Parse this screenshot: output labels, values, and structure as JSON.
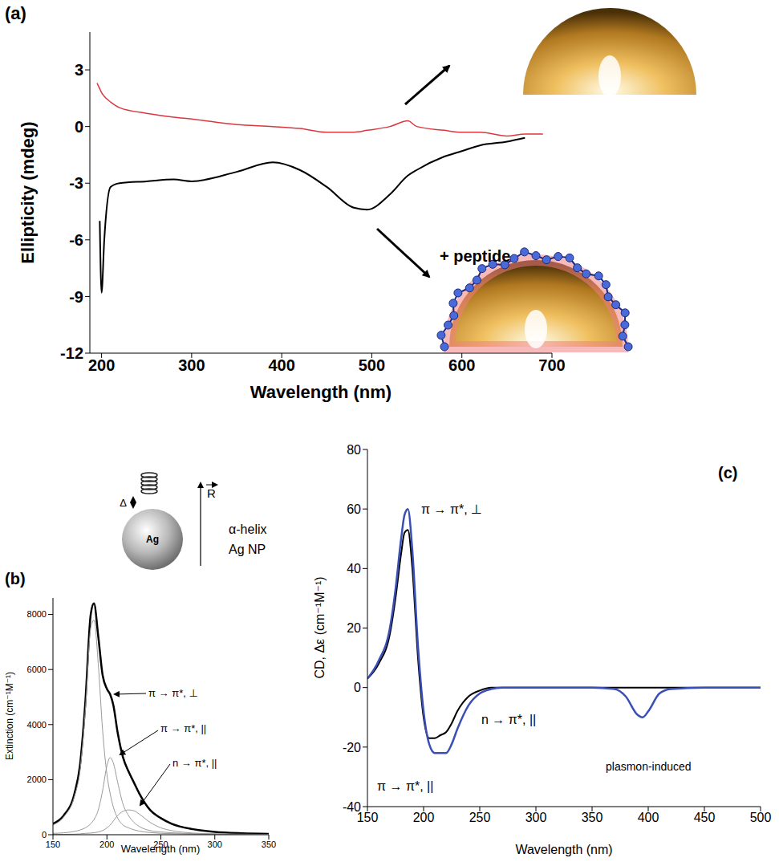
{
  "chart_data": [
    {
      "type": "line",
      "title": "(a)",
      "x_label": "Wavelength (nm)",
      "y_label": "Ellipticity (mdeg)",
      "x": [
        195,
        198,
        200,
        203,
        210,
        220,
        250,
        280,
        300,
        350,
        390,
        420,
        450,
        480,
        495,
        520,
        540,
        550,
        580,
        600,
        620,
        650,
        670,
        690
      ],
      "series": [
        {
          "color": "#d9383f",
          "values": [
            2.3,
            2.0,
            1.8,
            1.6,
            1.3,
            1.0,
            0.7,
            0.5,
            0.4,
            0.1,
            0.0,
            -0.1,
            -0.3,
            -0.3,
            -0.2,
            0.0,
            0.3,
            0.0,
            -0.2,
            -0.3,
            -0.3,
            -0.5,
            -0.4,
            -0.4
          ]
        },
        {
          "color": "#000000",
          "values": [
            null,
            -5.0,
            -8.8,
            -6.0,
            -3.2,
            -3.0,
            -2.9,
            -2.8,
            -2.9,
            -2.4,
            -1.9,
            -2.3,
            -3.2,
            -4.3,
            -4.4,
            -3.6,
            -2.6,
            -2.3,
            -1.6,
            -1.3,
            -1.0,
            -0.8,
            -0.6,
            null
          ]
        }
      ],
      "xlim": [
        187,
        700
      ],
      "ylim": [
        -12,
        5
      ],
      "xticks": [
        200,
        300,
        400,
        500,
        600,
        700
      ],
      "yticks": [
        -12,
        -9,
        -6,
        -3,
        0,
        3
      ],
      "annotations": [
        "+ peptide"
      ]
    },
    {
      "type": "line",
      "title": "(b)",
      "x_label": "Wavelength (nm)",
      "y_label": "Extinction (cm⁻¹M⁻¹)",
      "x": [
        150,
        160,
        170,
        175,
        180,
        185,
        188,
        192,
        196,
        200,
        203,
        206,
        210,
        215,
        220,
        225,
        230,
        240,
        250,
        260,
        280,
        300,
        325,
        350
      ],
      "series": [
        {
          "color": "#000000",
          "values": [
            400,
            700,
            1500,
            2500,
            4800,
            8000,
            8400,
            7200,
            5800,
            5300,
            5100,
            4700,
            3700,
            2800,
            2300,
            1900,
            1500,
            900,
            600,
            400,
            200,
            100,
            50,
            30
          ]
        },
        {
          "color": "#999999",
          "values": [
            350,
            650,
            1400,
            2300,
            4500,
            7500,
            7800,
            6200,
            3800,
            2200,
            1500,
            1000,
            600,
            350,
            250,
            180,
            130,
            80,
            50,
            40,
            20,
            10,
            5,
            0
          ]
        },
        {
          "color": "#999999",
          "values": [
            50,
            70,
            120,
            170,
            250,
            400,
            550,
            900,
            1600,
            2500,
            2800,
            2600,
            1900,
            1100,
            700,
            450,
            300,
            150,
            100,
            70,
            40,
            30,
            20,
            10
          ]
        },
        {
          "color": "#999999",
          "values": [
            10,
            15,
            20,
            30,
            50,
            60,
            70,
            100,
            150,
            250,
            350,
            500,
            700,
            850,
            900,
            870,
            750,
            450,
            250,
            150,
            60,
            30,
            10,
            5
          ]
        }
      ],
      "xlim": [
        150,
        350
      ],
      "ylim": [
        0,
        8600
      ],
      "xticks": [
        150,
        200,
        250,
        300,
        350
      ],
      "yticks": [
        0,
        2000,
        4000,
        6000,
        8000
      ],
      "annotations": [
        "π → π*, ⊥",
        "π → π*, ||",
        "n → π*, ||",
        "Ag",
        "α-helix",
        "Ag NP",
        "Δ",
        "R"
      ]
    },
    {
      "type": "line",
      "title": "(c)",
      "x_label": "Wavelength (nm)",
      "y_label": "CD, Δε (cm⁻¹M⁻¹)",
      "x": [
        150,
        160,
        170,
        175,
        180,
        183,
        186,
        190,
        195,
        200,
        205,
        210,
        215,
        220,
        225,
        230,
        240,
        250,
        260,
        270,
        300,
        350,
        370,
        380,
        390,
        395,
        400,
        410,
        420,
        450,
        500
      ],
      "series": [
        {
          "color": "#000000",
          "values": [
            3,
            8,
            18,
            30,
            45,
            52,
            53,
            40,
            10,
            -10,
            -17,
            -17,
            -16,
            -15,
            -12,
            -8,
            -3,
            -1,
            0,
            0,
            0,
            0,
            0,
            0,
            0,
            0,
            0,
            0,
            0,
            0,
            0
          ]
        },
        {
          "color": "#3a4fb5",
          "values": [
            3,
            9,
            20,
            33,
            50,
            58,
            60,
            46,
            14,
            -8,
            -19,
            -22,
            -22,
            -22,
            -19,
            -14,
            -6,
            -2,
            -0.5,
            0,
            0,
            0,
            -0.5,
            -3,
            -9,
            -10,
            -8,
            -2,
            -0.5,
            0,
            0
          ]
        }
      ],
      "xlim": [
        150,
        500
      ],
      "ylim": [
        -40,
        80
      ],
      "xticks": [
        150,
        200,
        250,
        300,
        350,
        400,
        450,
        500
      ],
      "yticks": [
        -40,
        -20,
        0,
        20,
        40,
        60,
        80
      ],
      "annotations": [
        "π → π*, ⊥",
        "n → π*, ||",
        "π → π*, ||",
        "plasmon-induced"
      ]
    }
  ]
}
